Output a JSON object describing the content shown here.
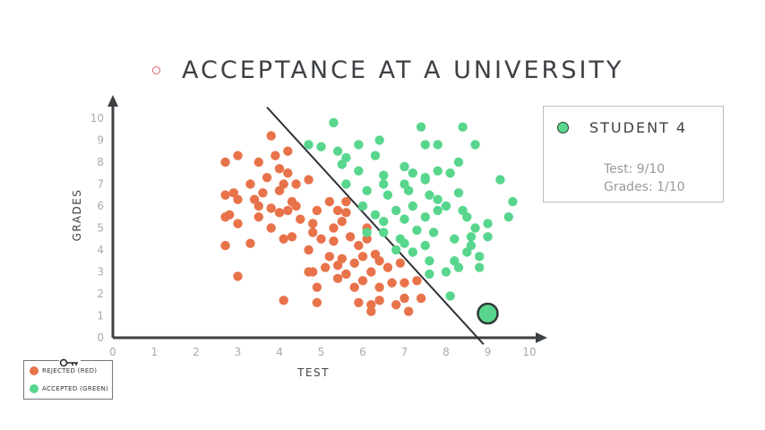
{
  "title": "ACCEPTANCE AT A UNIVERSITY",
  "colors": {
    "rejected": "#e8734a",
    "accepted": "#58d68d",
    "axis": "#3d4145",
    "title_dot": "#e06070"
  },
  "info_box": {
    "title": "STUDENT 4",
    "test_line": "Test: 9/10",
    "grades_line": "Grades: 1/10"
  },
  "legend": {
    "icon": "key-icon",
    "rejected_label": "REJECTED (RED)",
    "accepted_label": "ACCEPTED (GREEN)"
  },
  "chart_data": {
    "type": "scatter",
    "xlabel": "TEST",
    "ylabel": "GRADES",
    "xlim": [
      0,
      10
    ],
    "ylim": [
      0,
      10
    ],
    "x_ticks": [
      "0",
      "1",
      "2",
      "3",
      "4",
      "5",
      "6",
      "7",
      "8",
      "9",
      "10"
    ],
    "y_ticks": [
      "0",
      "1",
      "2",
      "3",
      "4",
      "5",
      "6",
      "7",
      "8",
      "9",
      "10"
    ],
    "grid": false,
    "boundary_line": {
      "from": [
        3.7,
        10.5
      ],
      "to": [
        8.9,
        -0.3
      ]
    },
    "highlight_point": {
      "x": 9,
      "y": 1.1,
      "label": "STUDENT 4"
    },
    "series": [
      {
        "name": "REJECTED (RED)",
        "points": [
          [
            2.7,
            8.0
          ],
          [
            3.0,
            8.3
          ],
          [
            3.5,
            8.0
          ],
          [
            3.8,
            9.2
          ],
          [
            3.9,
            8.3
          ],
          [
            4.0,
            7.7
          ],
          [
            4.2,
            8.5
          ],
          [
            3.3,
            7.0
          ],
          [
            3.7,
            7.3
          ],
          [
            4.1,
            7.0
          ],
          [
            4.2,
            7.5
          ],
          [
            4.4,
            7.0
          ],
          [
            4.7,
            7.2
          ],
          [
            2.7,
            6.5
          ],
          [
            2.9,
            6.6
          ],
          [
            3.4,
            6.3
          ],
          [
            3.6,
            6.6
          ],
          [
            4.0,
            6.7
          ],
          [
            4.3,
            6.2
          ],
          [
            4.4,
            6.0
          ],
          [
            2.8,
            5.6
          ],
          [
            3.0,
            6.3
          ],
          [
            3.5,
            6.0
          ],
          [
            3.8,
            5.9
          ],
          [
            4.2,
            5.8
          ],
          [
            4.9,
            5.8
          ],
          [
            5.2,
            6.2
          ],
          [
            5.6,
            6.2
          ],
          [
            2.7,
            5.5
          ],
          [
            3.0,
            5.2
          ],
          [
            3.5,
            5.5
          ],
          [
            4.0,
            5.7
          ],
          [
            4.5,
            5.4
          ],
          [
            4.8,
            5.2
          ],
          [
            5.3,
            5.0
          ],
          [
            5.5,
            5.3
          ],
          [
            3.8,
            5.0
          ],
          [
            4.3,
            4.6
          ],
          [
            4.8,
            4.8
          ],
          [
            5.0,
            4.5
          ],
          [
            5.3,
            4.4
          ],
          [
            5.7,
            4.6
          ],
          [
            5.9,
            4.2
          ],
          [
            6.1,
            4.5
          ],
          [
            2.7,
            4.2
          ],
          [
            3.3,
            4.3
          ],
          [
            4.1,
            4.5
          ],
          [
            4.7,
            4.0
          ],
          [
            5.2,
            3.7
          ],
          [
            5.5,
            3.6
          ],
          [
            6.0,
            3.7
          ],
          [
            6.3,
            3.8
          ],
          [
            4.8,
            3.0
          ],
          [
            5.1,
            3.2
          ],
          [
            5.4,
            3.3
          ],
          [
            5.6,
            2.9
          ],
          [
            5.8,
            3.4
          ],
          [
            6.2,
            3.0
          ],
          [
            6.4,
            3.5
          ],
          [
            6.6,
            3.2
          ],
          [
            4.9,
            2.3
          ],
          [
            5.4,
            2.7
          ],
          [
            5.8,
            2.3
          ],
          [
            6.0,
            2.6
          ],
          [
            6.4,
            2.3
          ],
          [
            6.7,
            2.5
          ],
          [
            7.0,
            2.5
          ],
          [
            7.3,
            2.6
          ],
          [
            4.1,
            1.7
          ],
          [
            4.9,
            1.6
          ],
          [
            5.9,
            1.6
          ],
          [
            6.2,
            1.5
          ],
          [
            6.4,
            1.7
          ],
          [
            6.8,
            1.5
          ],
          [
            7.0,
            1.8
          ],
          [
            7.4,
            1.8
          ],
          [
            7.1,
            1.2
          ],
          [
            6.2,
            1.2
          ],
          [
            6.9,
            3.4
          ],
          [
            6.1,
            5.0
          ],
          [
            5.6,
            5.7
          ],
          [
            3.0,
            2.8
          ],
          [
            4.7,
            3.0
          ],
          [
            5.4,
            5.8
          ]
        ]
      },
      {
        "name": "ACCEPTED (GREEN)",
        "points": [
          [
            4.7,
            8.8
          ],
          [
            5.3,
            9.8
          ],
          [
            5.0,
            8.7
          ],
          [
            5.4,
            8.5
          ],
          [
            5.6,
            8.2
          ],
          [
            5.9,
            8.8
          ],
          [
            6.4,
            9.0
          ],
          [
            6.3,
            8.3
          ],
          [
            7.4,
            9.6
          ],
          [
            7.5,
            8.8
          ],
          [
            7.8,
            8.8
          ],
          [
            8.4,
            9.6
          ],
          [
            8.7,
            8.8
          ],
          [
            5.5,
            7.9
          ],
          [
            5.9,
            7.6
          ],
          [
            6.5,
            7.4
          ],
          [
            7.0,
            7.8
          ],
          [
            7.2,
            7.5
          ],
          [
            7.5,
            7.3
          ],
          [
            7.8,
            7.6
          ],
          [
            8.1,
            7.5
          ],
          [
            8.3,
            8.0
          ],
          [
            5.6,
            7.0
          ],
          [
            6.1,
            6.7
          ],
          [
            6.5,
            7.0
          ],
          [
            6.6,
            6.5
          ],
          [
            7.0,
            7.0
          ],
          [
            7.1,
            6.7
          ],
          [
            7.5,
            7.2
          ],
          [
            7.6,
            6.5
          ],
          [
            8.3,
            6.6
          ],
          [
            9.3,
            7.2
          ],
          [
            9.6,
            6.2
          ],
          [
            6.0,
            6.0
          ],
          [
            6.3,
            5.6
          ],
          [
            6.8,
            5.8
          ],
          [
            7.2,
            6.0
          ],
          [
            7.8,
            6.3
          ],
          [
            8.0,
            6.0
          ],
          [
            8.4,
            5.8
          ],
          [
            9.0,
            5.2
          ],
          [
            9.5,
            5.5
          ],
          [
            6.5,
            5.3
          ],
          [
            7.0,
            5.4
          ],
          [
            7.5,
            5.5
          ],
          [
            7.8,
            5.8
          ],
          [
            8.5,
            5.5
          ],
          [
            8.7,
            5.0
          ],
          [
            6.5,
            4.8
          ],
          [
            6.9,
            4.5
          ],
          [
            7.3,
            4.9
          ],
          [
            7.7,
            4.8
          ],
          [
            8.2,
            4.5
          ],
          [
            8.6,
            4.6
          ],
          [
            9.0,
            4.6
          ],
          [
            7.5,
            4.2
          ],
          [
            7.2,
            3.9
          ],
          [
            7.6,
            3.5
          ],
          [
            8.2,
            3.5
          ],
          [
            8.5,
            3.9
          ],
          [
            8.8,
            3.7
          ],
          [
            8.0,
            3.0
          ],
          [
            8.3,
            3.2
          ],
          [
            8.8,
            3.2
          ],
          [
            8.1,
            1.9
          ],
          [
            7.6,
            2.9
          ],
          [
            6.8,
            4.0
          ],
          [
            7.0,
            4.3
          ],
          [
            8.6,
            4.2
          ],
          [
            6.1,
            4.8
          ]
        ]
      }
    ]
  }
}
